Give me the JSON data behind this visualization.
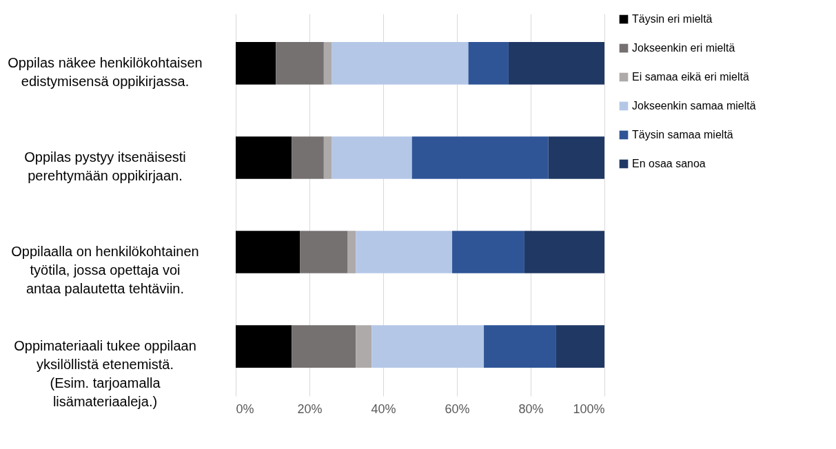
{
  "chart_data": {
    "type": "bar",
    "orientation": "horizontal",
    "stacked": true,
    "categories": [
      "Oppilas näkee henkilökohtaisen edistymisensä oppikirjassa.",
      "Oppilas pystyy itsenäisesti perehtymään oppikirjaan.",
      "Oppilaalla on henkilökohtainen työtila, jossa opettaja voi antaa palautetta tehtäviin.",
      "Oppimateriaali tukee oppilaan yksilöllistä etenemistä. (Esim. tarjoamalla lisämateriaaleja.)"
    ],
    "series": [
      {
        "name": "Täysin eri mieltä",
        "color": "#000000",
        "values": [
          10.9,
          15.2,
          17.4,
          15.2
        ]
      },
      {
        "name": "Jokseenkin eri mieltä",
        "color": "#767171",
        "values": [
          13.0,
          8.7,
          13.0,
          17.4
        ]
      },
      {
        "name": " Ei samaa eikä eri mieltä",
        "color": "#aeaaaa",
        "values": [
          2.2,
          2.2,
          2.2,
          4.3
        ]
      },
      {
        "name": "Jokseenkin samaa mieltä",
        "color": "#b4c7e7",
        "values": [
          37.0,
          21.7,
          26.1,
          30.4
        ]
      },
      {
        "name": "Täysin samaa mieltä",
        "color": "#2f5597",
        "values": [
          10.9,
          37.0,
          19.6,
          19.6
        ]
      },
      {
        "name": "En osaa sanoa",
        "color": "#203864",
        "values": [
          26.0,
          15.2,
          21.7,
          13.1
        ]
      }
    ],
    "xlim": [
      0,
      100
    ],
    "xticks": [
      {
        "value": 0,
        "label": "0%"
      },
      {
        "value": 20,
        "label": "20%"
      },
      {
        "value": 40,
        "label": "40%"
      },
      {
        "value": 60,
        "label": "60%"
      },
      {
        "value": 80,
        "label": "80%"
      },
      {
        "value": 100,
        "label": "100%"
      }
    ],
    "grid": "x",
    "legend": "right"
  }
}
